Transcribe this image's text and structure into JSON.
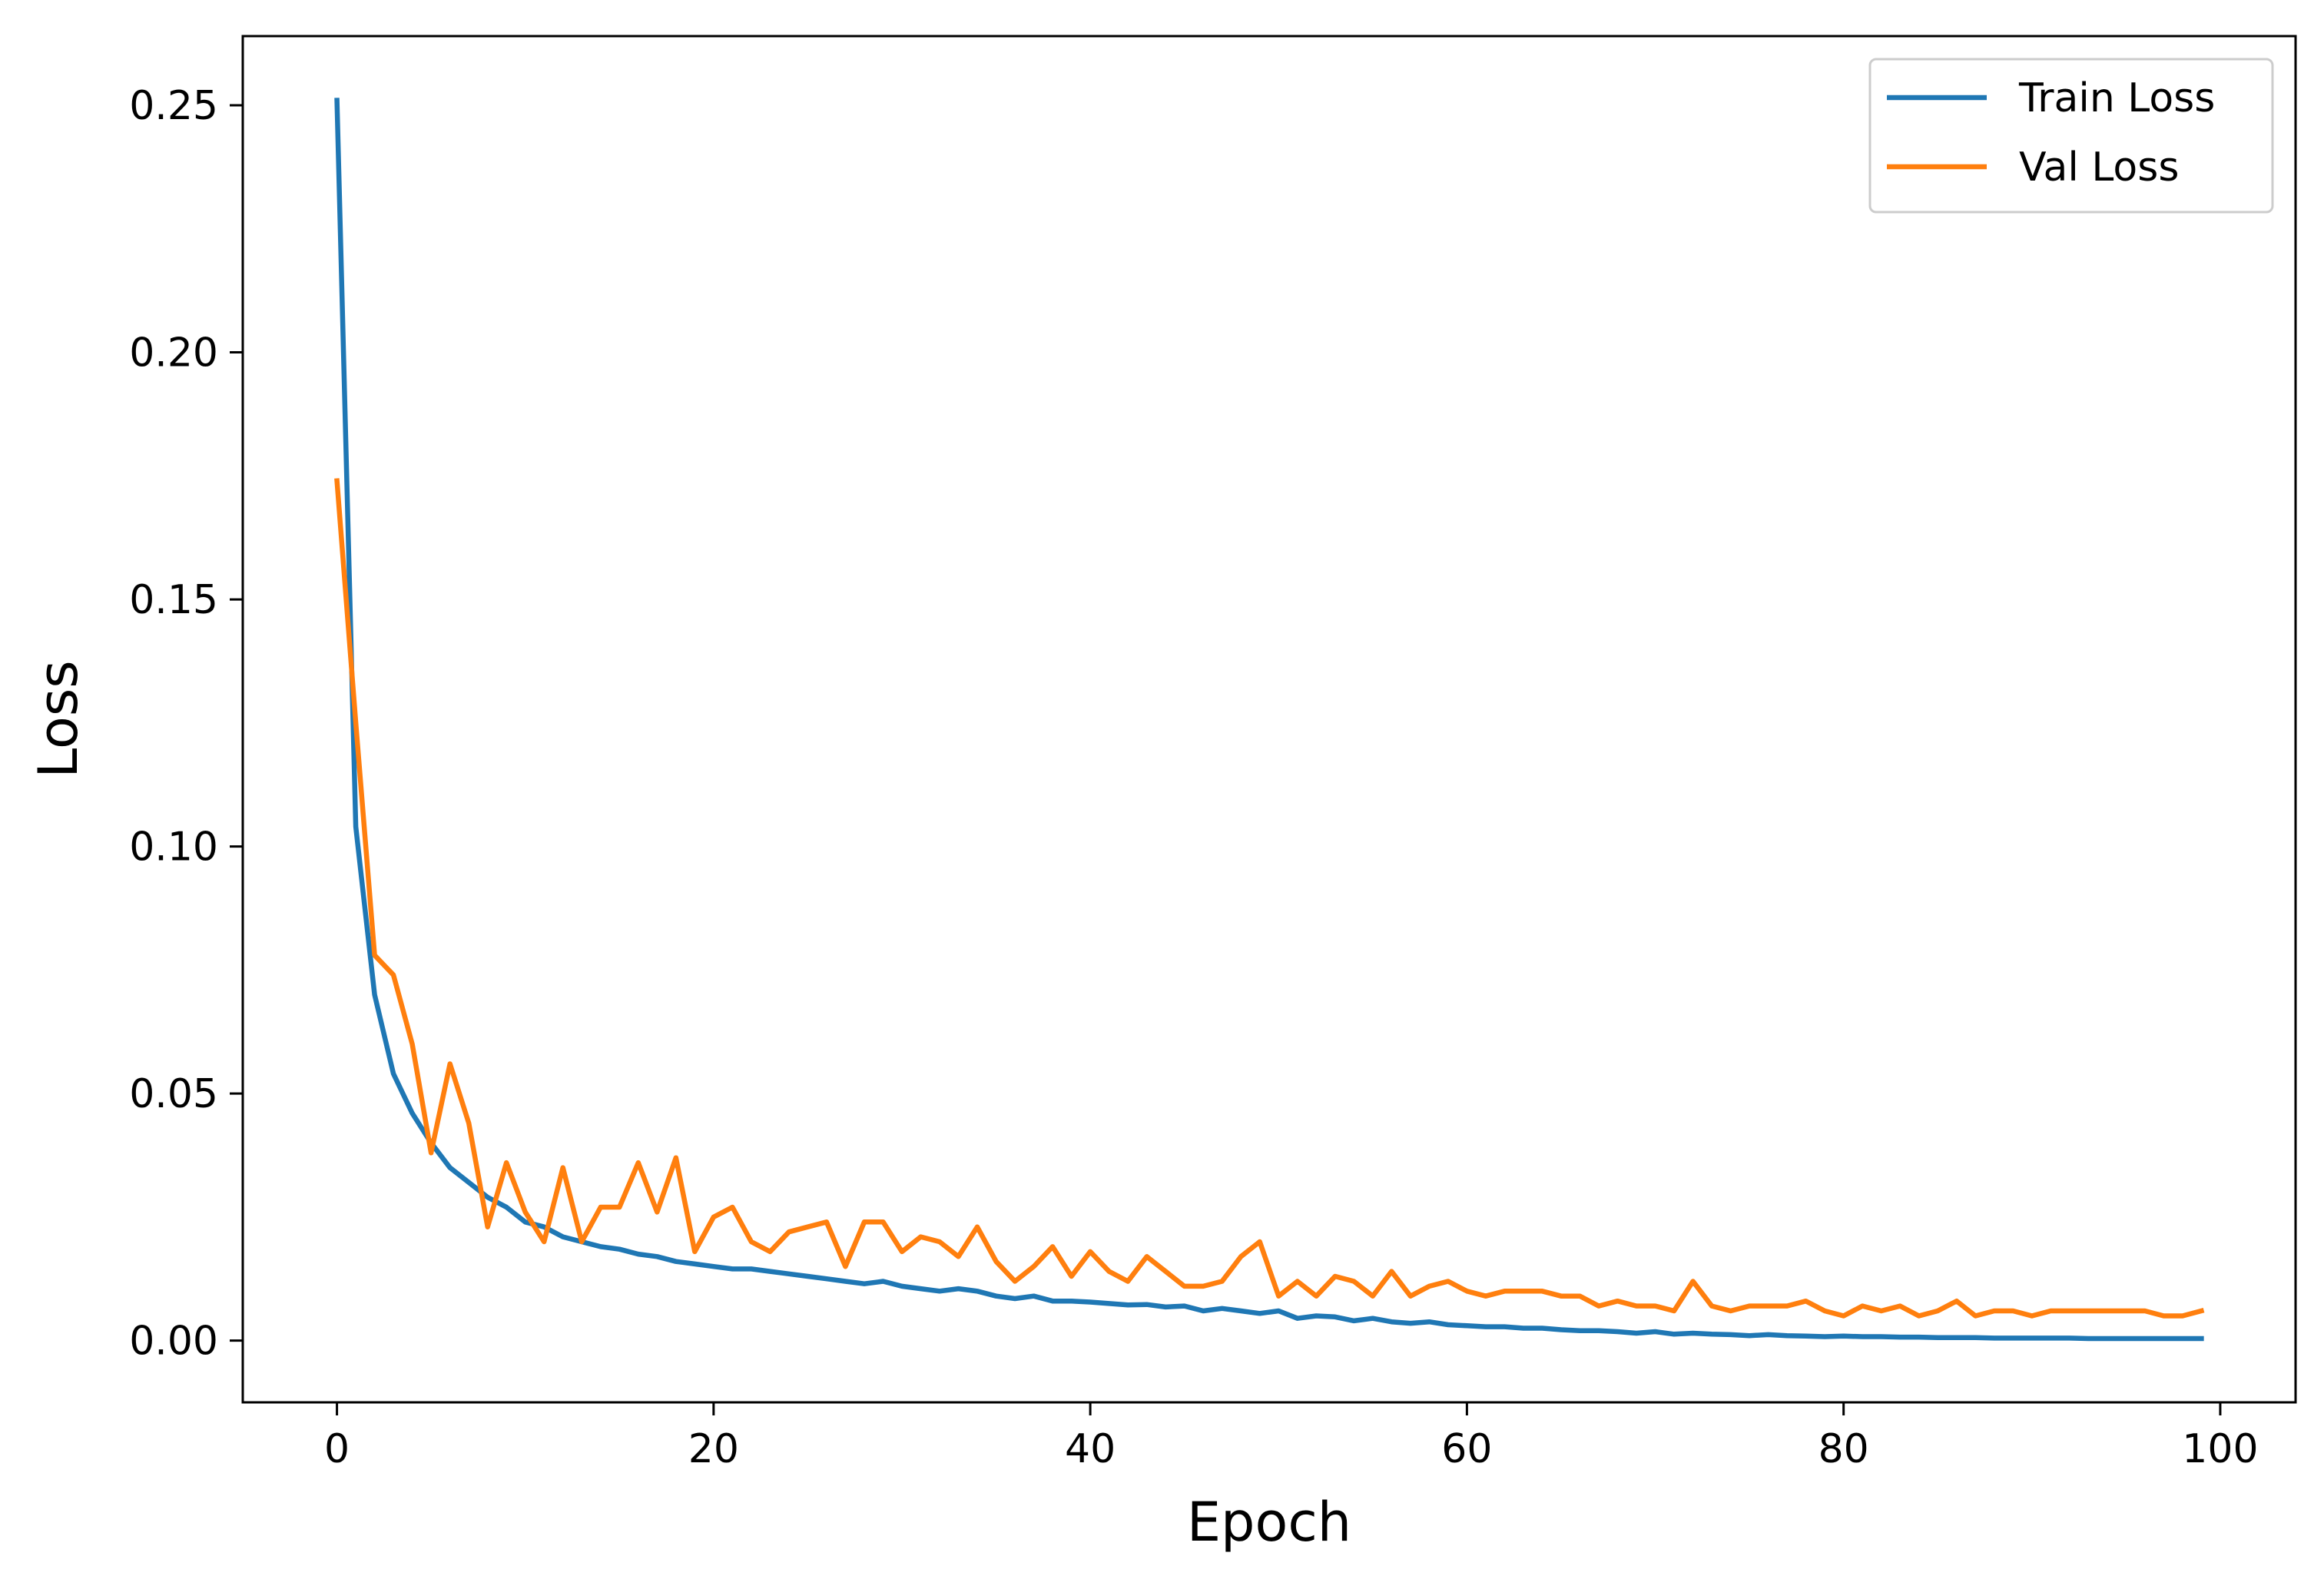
{
  "chart_data": {
    "type": "line",
    "title": "",
    "xlabel": "Epoch",
    "ylabel": "Loss",
    "xlim": [
      -5,
      104
    ],
    "ylim": [
      -0.0125,
      0.264
    ],
    "xticks": [
      0,
      20,
      40,
      60,
      80,
      100
    ],
    "yticks": [
      0.0,
      0.05,
      0.1,
      0.15,
      0.2,
      0.25
    ],
    "xtick_labels": [
      "0",
      "20",
      "40",
      "60",
      "80",
      "100"
    ],
    "ytick_labels": [
      "0.00",
      "0.05",
      "0.10",
      "0.15",
      "0.20",
      "0.25"
    ],
    "grid": false,
    "legend_position": "top-right",
    "x": [
      0,
      1,
      2,
      3,
      4,
      5,
      6,
      7,
      8,
      9,
      10,
      11,
      12,
      13,
      14,
      15,
      16,
      17,
      18,
      19,
      20,
      21,
      22,
      23,
      24,
      25,
      26,
      27,
      28,
      29,
      30,
      31,
      32,
      33,
      34,
      35,
      36,
      37,
      38,
      39,
      40,
      41,
      42,
      43,
      44,
      45,
      46,
      47,
      48,
      49,
      50,
      51,
      52,
      53,
      54,
      55,
      56,
      57,
      58,
      59,
      60,
      61,
      62,
      63,
      64,
      65,
      66,
      67,
      68,
      69,
      70,
      71,
      72,
      73,
      74,
      75,
      76,
      77,
      78,
      79,
      80,
      81,
      82,
      83,
      84,
      85,
      86,
      87,
      88,
      89,
      90,
      91,
      92,
      93,
      94,
      95,
      96,
      97,
      98,
      99
    ],
    "series": [
      {
        "name": "Train Loss",
        "color": "#1f77b4",
        "values": [
          0.251,
          0.104,
          0.07,
          0.054,
          0.046,
          0.04,
          0.035,
          0.032,
          0.029,
          0.027,
          0.024,
          0.023,
          0.021,
          0.02,
          0.019,
          0.0185,
          0.0175,
          0.017,
          0.016,
          0.0155,
          0.015,
          0.0145,
          0.0145,
          0.014,
          0.0135,
          0.013,
          0.0125,
          0.012,
          0.0115,
          0.012,
          0.011,
          0.0105,
          0.01,
          0.0105,
          0.01,
          0.009,
          0.0085,
          0.009,
          0.008,
          0.008,
          0.0078,
          0.0075,
          0.0072,
          0.0073,
          0.0068,
          0.007,
          0.006,
          0.0065,
          0.006,
          0.0055,
          0.006,
          0.0045,
          0.005,
          0.0048,
          0.004,
          0.0045,
          0.0038,
          0.0035,
          0.0038,
          0.0032,
          0.003,
          0.0028,
          0.0028,
          0.0025,
          0.0025,
          0.0022,
          0.002,
          0.002,
          0.0018,
          0.0015,
          0.0018,
          0.0013,
          0.0015,
          0.0013,
          0.0012,
          0.001,
          0.0012,
          0.001,
          0.0009,
          0.0008,
          0.0009,
          0.0008,
          0.0008,
          0.0007,
          0.0007,
          0.0006,
          0.0006,
          0.0006,
          0.0005,
          0.0005,
          0.0005,
          0.0005,
          0.0005,
          0.0004,
          0.0004,
          0.0004,
          0.0004,
          0.0004,
          0.0004,
          0.0004
        ]
      },
      {
        "name": "Val Loss",
        "color": "#ff7f0e",
        "values": [
          0.174,
          0.125,
          0.078,
          0.074,
          0.06,
          0.038,
          0.056,
          0.044,
          0.023,
          0.036,
          0.026,
          0.02,
          0.035,
          0.02,
          0.027,
          0.027,
          0.036,
          0.026,
          0.037,
          0.018,
          0.025,
          0.027,
          0.02,
          0.018,
          0.022,
          0.023,
          0.024,
          0.015,
          0.024,
          0.024,
          0.018,
          0.021,
          0.02,
          0.017,
          0.023,
          0.016,
          0.012,
          0.015,
          0.019,
          0.013,
          0.018,
          0.014,
          0.012,
          0.017,
          0.014,
          0.011,
          0.011,
          0.012,
          0.017,
          0.02,
          0.009,
          0.012,
          0.009,
          0.013,
          0.012,
          0.009,
          0.014,
          0.009,
          0.011,
          0.012,
          0.01,
          0.009,
          0.01,
          0.01,
          0.01,
          0.009,
          0.009,
          0.007,
          0.008,
          0.007,
          0.007,
          0.006,
          0.012,
          0.007,
          0.006,
          0.007,
          0.007,
          0.007,
          0.008,
          0.006,
          0.005,
          0.007,
          0.006,
          0.007,
          0.005,
          0.006,
          0.008,
          0.005,
          0.006,
          0.006,
          0.005,
          0.006,
          0.006,
          0.006,
          0.006,
          0.006,
          0.006,
          0.005,
          0.005,
          0.006
        ]
      }
    ]
  }
}
